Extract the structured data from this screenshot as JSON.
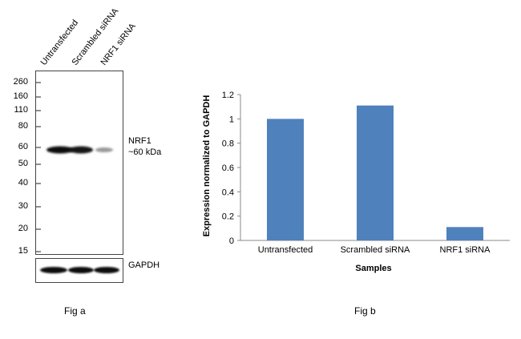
{
  "figure_a": {
    "lane_labels": [
      "Untransfected",
      "Scrambled siRNA",
      "NRF1 siRNA"
    ],
    "mw_markers": [
      "260",
      "160",
      "110",
      "80",
      "60",
      "50",
      "40",
      "30",
      "20",
      "15"
    ],
    "target_label": "NRF1",
    "target_size": "~60 kDa",
    "loading_control_label": "GAPDH",
    "caption": "Fig a"
  },
  "figure_b": {
    "caption": "Fig b"
  },
  "chart_data": {
    "type": "bar",
    "categories": [
      "Untransfected",
      "Scrambled siRNA",
      "NRF1 siRNA"
    ],
    "values": [
      1.0,
      1.11,
      0.11
    ],
    "xlabel": "Samples",
    "ylabel": "Expression normalized to GAPDH",
    "ylim": [
      0,
      1.2
    ],
    "yticks": [
      "0",
      "0.2",
      "0.4",
      "0.6",
      "0.8",
      "1",
      "1.2"
    ],
    "bar_color": "#4f81bd",
    "grid": false
  }
}
